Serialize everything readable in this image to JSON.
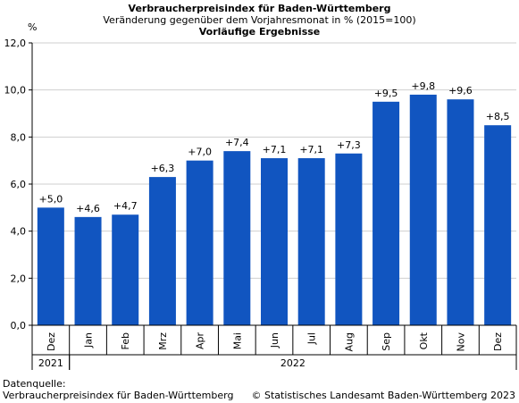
{
  "chart_data": {
    "type": "bar",
    "title": "Verbraucherpreisindex für Baden-Württemberg",
    "subtitle": "Veränderung gegenüber dem Vorjahresmonat in % (2015=100)",
    "note": "Vorläufige Ergebnisse",
    "ylabel": "%",
    "ylim": [
      0,
      12
    ],
    "yticks": [
      "0,0",
      "2,0",
      "4,0",
      "6,0",
      "8,0",
      "10,0",
      "12,0"
    ],
    "grid": true,
    "categories": [
      "Dez",
      "Jan",
      "Feb",
      "Mrz",
      "Apr",
      "Mai",
      "Jun",
      "Jul",
      "Aug",
      "Sep",
      "Okt",
      "Nov",
      "Dez"
    ],
    "values": [
      5.0,
      4.6,
      4.7,
      6.3,
      7.0,
      7.4,
      7.1,
      7.1,
      7.3,
      9.5,
      9.8,
      9.6,
      8.5
    ],
    "data_labels": [
      "+5,0",
      "+4,6",
      "+4,7",
      "+6,3",
      "+7,0",
      "+7,4",
      "+7,1",
      "+7,1",
      "+7,3",
      "+9,5",
      "+9,8",
      "+9,6",
      "+8,5"
    ],
    "year_groups": [
      {
        "label": "2021",
        "count": 1
      },
      {
        "label": "2022",
        "count": 12
      }
    ],
    "bar_color": "#1155c0"
  },
  "footer": {
    "source_label": "Datenquelle:",
    "source": "Verbraucherpreisindex für Baden-Württemberg",
    "copyright": "© Statistisches Landesamt Baden-Württemberg 2023"
  }
}
